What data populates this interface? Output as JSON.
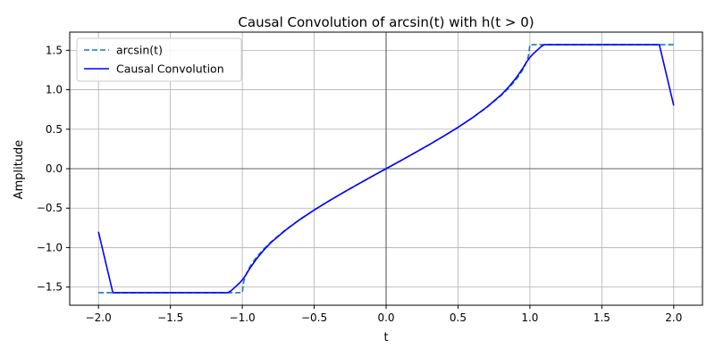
{
  "chart_data": {
    "type": "line",
    "title": "Causal Convolution of arcsin(t) with h(t > 0)",
    "xlabel": "t",
    "ylabel": "Amplitude",
    "xlim": [
      -2.2,
      2.2
    ],
    "ylim": [
      -1.73,
      1.73
    ],
    "xticks": [
      -2.0,
      -1.5,
      -1.0,
      -0.5,
      0.0,
      0.5,
      1.0,
      1.5,
      2.0
    ],
    "yticks": [
      -1.5,
      -1.0,
      -0.5,
      0.0,
      0.5,
      1.0,
      1.5
    ],
    "xtick_labels": [
      "−2.0",
      "−1.5",
      "−1.0",
      "−0.5",
      "0.0",
      "0.5",
      "1.0",
      "1.5",
      "2.0"
    ],
    "ytick_labels": [
      "−1.5",
      "−1.0",
      "−0.5",
      "0.0",
      "0.5",
      "1.0",
      "1.5"
    ],
    "grid": true,
    "zero_lines": true,
    "legend_position": "upper-left",
    "series": [
      {
        "name": "arcsin(t)",
        "style": "dashed",
        "color": "#1f77b4",
        "x": [
          -2.0,
          -1.0,
          -1.0,
          -0.99,
          -0.98,
          -0.97,
          -0.96,
          -0.95,
          -0.93,
          -0.9,
          -0.85,
          -0.8,
          -0.7,
          -0.6,
          -0.5,
          -0.4,
          -0.3,
          -0.2,
          -0.1,
          0.0,
          0.1,
          0.2,
          0.3,
          0.4,
          0.5,
          0.6,
          0.7,
          0.8,
          0.85,
          0.9,
          0.93,
          0.95,
          0.96,
          0.97,
          0.98,
          0.99,
          1.0,
          1.0,
          2.0
        ],
        "y": [
          -1.5708,
          -1.5708,
          -1.5708,
          -1.4293,
          -1.3705,
          -1.3252,
          -1.287,
          -1.2532,
          -1.1944,
          -1.1198,
          -1.016,
          -0.9273,
          -0.7754,
          -0.6435,
          -0.5236,
          -0.4115,
          -0.3047,
          -0.2014,
          -0.1002,
          0.0,
          0.1002,
          0.2014,
          0.3047,
          0.4115,
          0.5236,
          0.6435,
          0.7754,
          0.9273,
          1.016,
          1.1198,
          1.1944,
          1.2532,
          1.287,
          1.3252,
          1.3705,
          1.4293,
          1.5708,
          1.5708,
          1.5708
        ]
      },
      {
        "name": "Causal Convolution",
        "style": "solid",
        "color": "#0000ff",
        "x": [
          -2.0,
          -1.9,
          -1.1,
          -1.08,
          -1.05,
          -1.02,
          -1.0,
          -0.98,
          -0.95,
          -0.9,
          -0.85,
          -0.8,
          -0.7,
          -0.6,
          -0.5,
          -0.4,
          -0.3,
          -0.2,
          -0.1,
          0.0,
          0.1,
          0.2,
          0.3,
          0.4,
          0.5,
          0.6,
          0.7,
          0.8,
          0.85,
          0.9,
          0.95,
          0.98,
          1.0,
          1.02,
          1.05,
          1.08,
          1.1,
          1.9,
          2.0
        ],
        "y": [
          -0.8,
          -1.5708,
          -1.5708,
          -1.55,
          -1.5,
          -1.45,
          -1.41,
          -1.36,
          -1.27,
          -1.14,
          -1.03,
          -0.935,
          -0.78,
          -0.645,
          -0.524,
          -0.412,
          -0.305,
          -0.2014,
          -0.1002,
          0.0,
          0.1002,
          0.2014,
          0.305,
          0.412,
          0.524,
          0.645,
          0.78,
          0.935,
          1.03,
          1.14,
          1.27,
          1.36,
          1.41,
          1.45,
          1.5,
          1.55,
          1.5708,
          1.5708,
          0.8
        ]
      }
    ]
  }
}
